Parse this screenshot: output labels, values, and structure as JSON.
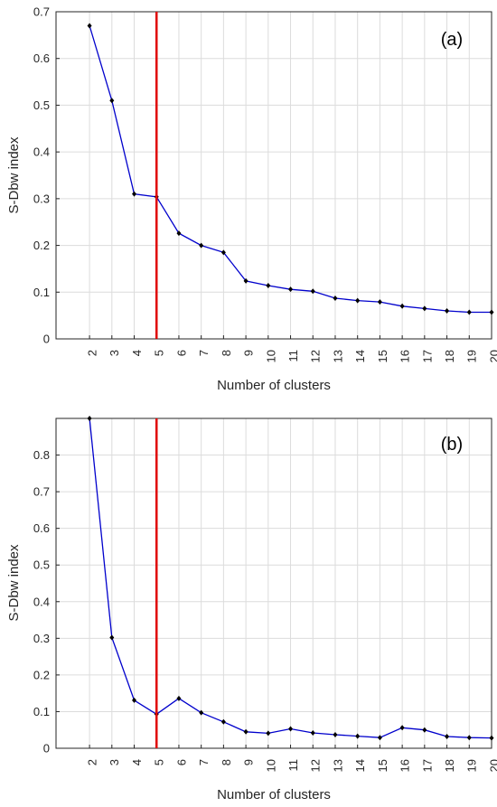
{
  "chart_data": [
    {
      "type": "line",
      "panel_label": "(a)",
      "xlabel": "Number of clusters",
      "ylabel": "S-Dbw index",
      "x_ticks": [
        2,
        3,
        4,
        5,
        6,
        7,
        8,
        9,
        10,
        11,
        12,
        13,
        14,
        15,
        16,
        17,
        18,
        19,
        20
      ],
      "xlim": [
        0.5,
        20
      ],
      "ylim": [
        0,
        0.7
      ],
      "y_ticks": [
        0,
        0.1,
        0.2,
        0.3,
        0.4,
        0.5,
        0.6,
        0.7
      ],
      "grid": true,
      "series": [
        {
          "color": "#0000cc",
          "marker_color": "#000000",
          "x": [
            2,
            3,
            4,
            5,
            6,
            7,
            8,
            9,
            10,
            11,
            12,
            13,
            14,
            15,
            16,
            17,
            18,
            19,
            20
          ],
          "values": [
            0.67,
            0.51,
            0.31,
            0.304,
            0.226,
            0.2,
            0.185,
            0.124,
            0.114,
            0.106,
            0.102,
            0.087,
            0.082,
            0.079,
            0.07,
            0.065,
            0.06,
            0.057,
            0.057
          ]
        }
      ],
      "vline": {
        "x": 5,
        "color": "#e00000"
      }
    },
    {
      "type": "line",
      "panel_label": "(b)",
      "xlabel": "Number of clusters",
      "ylabel": "S-Dbw index",
      "x_ticks": [
        2,
        3,
        4,
        5,
        6,
        7,
        8,
        9,
        10,
        11,
        12,
        13,
        14,
        15,
        16,
        17,
        18,
        19,
        20
      ],
      "xlim": [
        0.5,
        20
      ],
      "ylim": [
        0,
        0.9
      ],
      "y_ticks": [
        0,
        0.1,
        0.2,
        0.3,
        0.4,
        0.5,
        0.6,
        0.7,
        0.8
      ],
      "grid": true,
      "series": [
        {
          "color": "#0000cc",
          "marker_color": "#000000",
          "x": [
            2,
            3,
            4,
            5,
            6,
            7,
            8,
            9,
            10,
            11,
            12,
            13,
            14,
            15,
            16,
            17,
            18,
            19,
            20
          ],
          "values": [
            0.9,
            0.302,
            0.131,
            0.093,
            0.136,
            0.097,
            0.072,
            0.045,
            0.041,
            0.053,
            0.042,
            0.037,
            0.033,
            0.029,
            0.056,
            0.05,
            0.032,
            0.029,
            0.028
          ]
        }
      ],
      "vline": {
        "x": 5,
        "color": "#e00000"
      }
    }
  ]
}
